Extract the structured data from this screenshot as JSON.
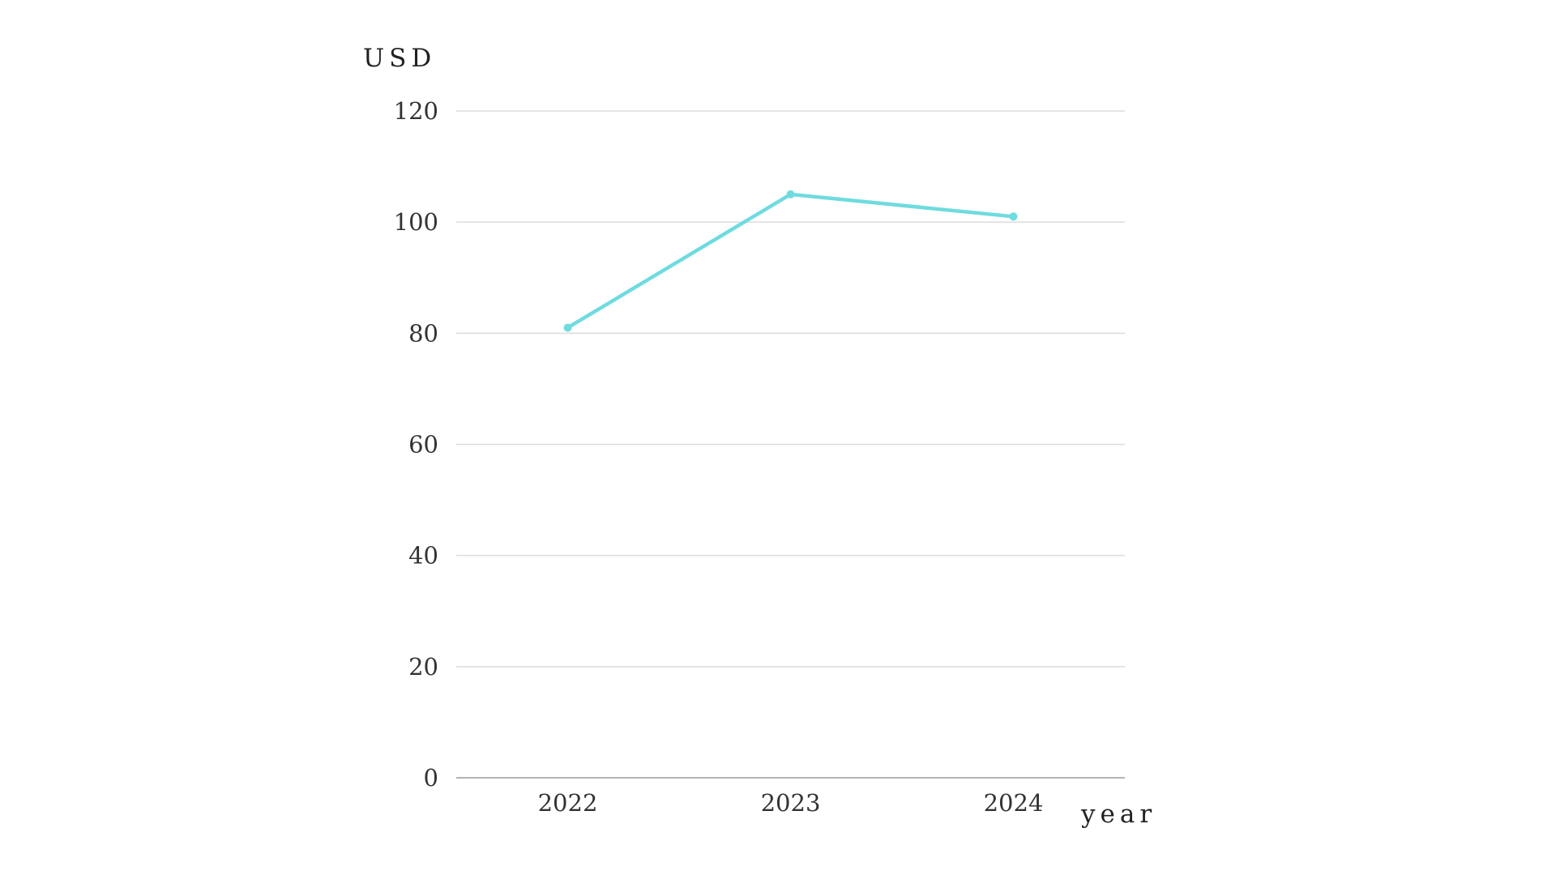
{
  "chart_data": {
    "type": "line",
    "categories": [
      "2022",
      "2023",
      "2024"
    ],
    "series": [
      {
        "values": [
          81,
          105,
          101
        ],
        "color": "#6fdbdf"
      }
    ],
    "ylabel": "USD",
    "xlabel": "year",
    "ylim": [
      0,
      120
    ],
    "yticks": [
      0,
      20,
      40,
      60,
      80,
      100,
      120
    ],
    "grid": true
  }
}
